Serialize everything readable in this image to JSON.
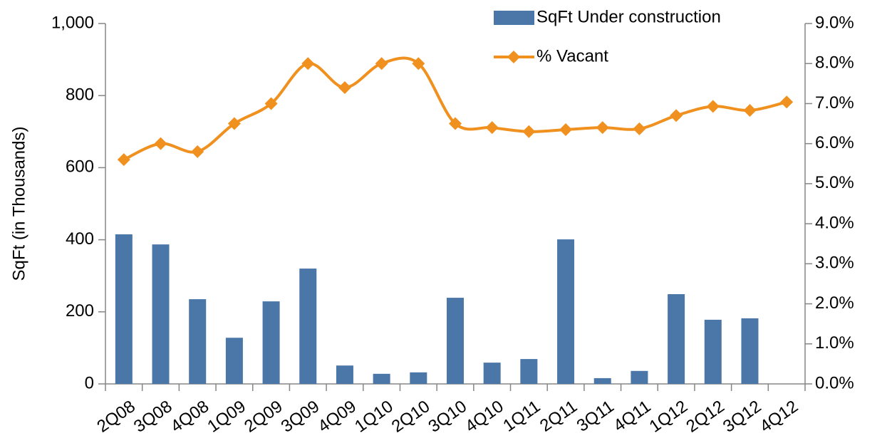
{
  "chart_data": {
    "type": "bar-line",
    "y_label": "SqFt  (in Thousands)",
    "categories": [
      "2Q08",
      "3Q08",
      "4Q08",
      "1Q09",
      "2Q09",
      "3Q09",
      "4Q09",
      "1Q10",
      "2Q10",
      "3Q10",
      "4Q10",
      "1Q11",
      "2Q11",
      "3Q11",
      "4Q11",
      "1Q12",
      "2Q12",
      "3Q12",
      "4Q12"
    ],
    "series": [
      {
        "name": "SqFt Under construction",
        "color": "#4a76a8",
        "kind": "bar",
        "values": [
          415,
          387,
          235,
          128,
          229,
          320,
          51,
          28,
          32,
          239,
          59,
          69,
          401,
          16,
          36,
          249,
          178,
          182,
          null
        ]
      },
      {
        "name": "% Vacant",
        "color": "#f0901e",
        "kind": "line",
        "axis": "y2",
        "values": [
          5.6,
          6.0,
          5.8,
          6.5,
          7.0,
          8.0,
          7.4,
          8.0,
          8.0,
          6.5,
          6.4,
          6.3,
          6.35,
          6.4,
          6.37,
          6.7,
          6.93,
          6.83,
          7.04
        ]
      }
    ],
    "ylim": [
      0,
      1000
    ],
    "yticks": [
      0,
      200,
      400,
      600,
      800,
      {
        "value": 1000,
        "label": "1,000"
      }
    ],
    "y2lim": [
      0,
      9
    ],
    "y2ticks": [
      {
        "value": 0,
        "label": "0.0%"
      },
      {
        "value": 1,
        "label": "1.0%"
      },
      {
        "value": 2,
        "label": "2.0%"
      },
      {
        "value": 3,
        "label": "3.0%"
      },
      {
        "value": 4,
        "label": "4.0%"
      },
      {
        "value": 5,
        "label": "5.0%"
      },
      {
        "value": 6,
        "label": "6.0%"
      },
      {
        "value": 7,
        "label": "7.0%"
      },
      {
        "value": 8,
        "label": "8.0%"
      },
      {
        "value": 9,
        "label": "9.0%"
      }
    ],
    "legend": "top-right"
  }
}
